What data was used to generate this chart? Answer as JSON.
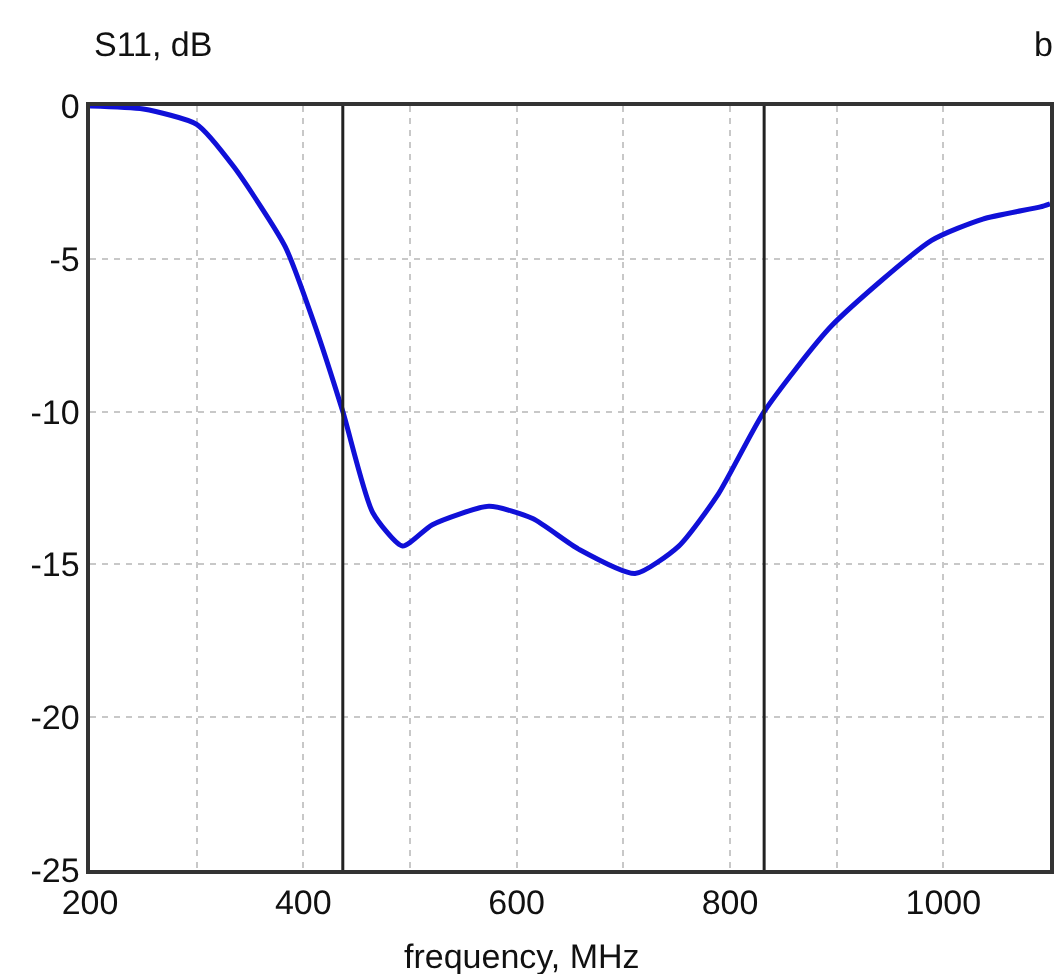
{
  "chart_data": {
    "type": "line",
    "xlabel": "frequency, MHz",
    "ylabel": "S11, dB",
    "annotations": [
      "b"
    ],
    "x": [
      200,
      250,
      300,
      335,
      383,
      409,
      437,
      465,
      493,
      521,
      574,
      615,
      658,
      711,
      752,
      789,
      832,
      895,
      989,
      1037,
      1091,
      1100
    ],
    "series": [
      {
        "color": "#1010d8",
        "values": [
          0,
          -0.1,
          -0.6,
          -2.0,
          -4.6,
          -7.0,
          -10,
          -13.3,
          -14.4,
          -13.7,
          -13.1,
          -13.5,
          -14.5,
          -15.3,
          -14.4,
          -12.7,
          -10,
          -7.2,
          -4.4,
          -3.7,
          -3.3,
          -3.2
        ]
      }
    ],
    "ref_lines": [
      {
        "axis": "x",
        "value": 437,
        "color": "#222222"
      },
      {
        "axis": "x",
        "value": 832,
        "color": "#222222"
      }
    ],
    "xlim": [
      200,
      1100
    ],
    "xticks": [
      200,
      400,
      600,
      800,
      1000
    ],
    "ylim": [
      -25,
      0
    ],
    "yticks": [
      -25,
      -20,
      -15,
      -10,
      -5,
      0
    ],
    "grid": true,
    "marker": "none",
    "line_style": "solid",
    "legend": false
  }
}
